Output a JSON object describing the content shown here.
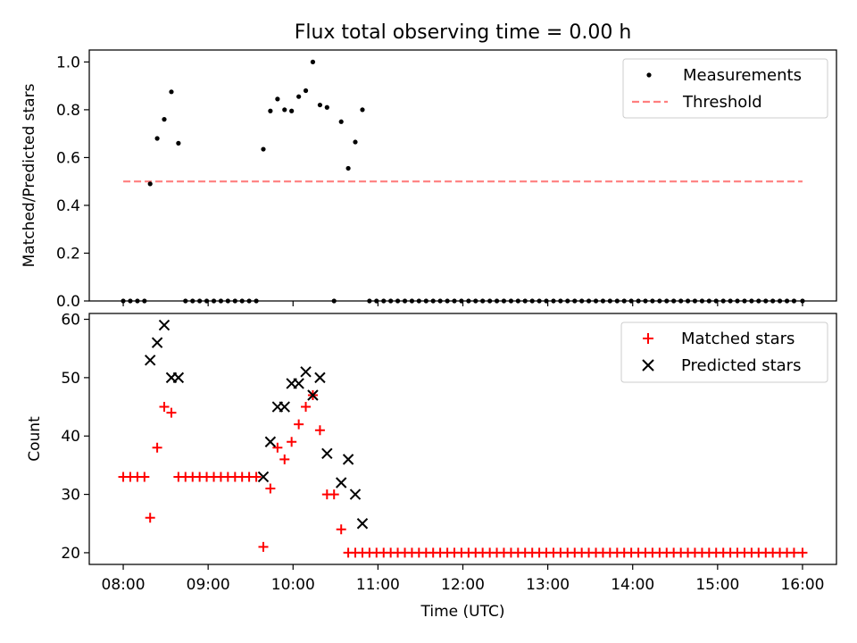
{
  "chart_data": [
    {
      "type": "scatter",
      "title": "Flux total observing time = 0.00 h",
      "ylabel": "Matched/Predicted stars",
      "ylim": [
        0.0,
        1.05
      ],
      "xlim": [
        7.6,
        16.4
      ],
      "yticks": [
        0.0,
        0.2,
        0.4,
        0.6,
        0.8,
        1.0
      ],
      "ytick_labels": [
        "0.0",
        "0.2",
        "0.4",
        "0.6",
        "0.8",
        "1.0"
      ],
      "legend_location": "top-right",
      "series": [
        {
          "name": "Measurements",
          "marker": "dot",
          "color": "#000000",
          "points": [
            [
              8.0,
              0.0
            ],
            [
              8.083,
              0.0
            ],
            [
              8.167,
              0.0
            ],
            [
              8.25,
              0.0
            ],
            [
              8.317,
              0.49
            ],
            [
              8.4,
              0.68
            ],
            [
              8.483,
              0.76
            ],
            [
              8.567,
              0.875
            ],
            [
              8.65,
              0.66
            ],
            [
              8.733,
              0.0
            ],
            [
              8.817,
              0.0
            ],
            [
              8.9,
              0.0
            ],
            [
              8.983,
              0.0
            ],
            [
              9.067,
              0.0
            ],
            [
              9.15,
              0.0
            ],
            [
              9.233,
              0.0
            ],
            [
              9.317,
              0.0
            ],
            [
              9.4,
              0.0
            ],
            [
              9.483,
              0.0
            ],
            [
              9.567,
              0.0
            ],
            [
              9.65,
              0.635
            ],
            [
              9.733,
              0.795
            ],
            [
              9.817,
              0.845
            ],
            [
              9.9,
              0.8
            ],
            [
              9.983,
              0.795
            ],
            [
              10.067,
              0.855
            ],
            [
              10.15,
              0.88
            ],
            [
              10.233,
              1.0
            ],
            [
              10.317,
              0.82
            ],
            [
              10.4,
              0.81
            ],
            [
              10.483,
              0.0
            ],
            [
              10.567,
              0.75
            ],
            [
              10.65,
              0.555
            ],
            [
              10.733,
              0.665
            ],
            [
              10.817,
              0.8
            ],
            [
              10.9,
              0.0
            ],
            [
              10.983,
              0.0
            ],
            [
              11.067,
              0.0
            ],
            [
              11.15,
              0.0
            ],
            [
              11.233,
              0.0
            ],
            [
              11.317,
              0.0
            ],
            [
              11.4,
              0.0
            ],
            [
              11.483,
              0.0
            ],
            [
              11.567,
              0.0
            ],
            [
              11.65,
              0.0
            ],
            [
              11.733,
              0.0
            ],
            [
              11.817,
              0.0
            ],
            [
              11.9,
              0.0
            ],
            [
              11.983,
              0.0
            ],
            [
              12.067,
              0.0
            ],
            [
              12.15,
              0.0
            ],
            [
              12.233,
              0.0
            ],
            [
              12.317,
              0.0
            ],
            [
              12.4,
              0.0
            ],
            [
              12.483,
              0.0
            ],
            [
              12.567,
              0.0
            ],
            [
              12.65,
              0.0
            ],
            [
              12.733,
              0.0
            ],
            [
              12.817,
              0.0
            ],
            [
              12.9,
              0.0
            ],
            [
              12.983,
              0.0
            ],
            [
              13.067,
              0.0
            ],
            [
              13.15,
              0.0
            ],
            [
              13.233,
              0.0
            ],
            [
              13.317,
              0.0
            ],
            [
              13.4,
              0.0
            ],
            [
              13.483,
              0.0
            ],
            [
              13.567,
              0.0
            ],
            [
              13.65,
              0.0
            ],
            [
              13.733,
              0.0
            ],
            [
              13.817,
              0.0
            ],
            [
              13.9,
              0.0
            ],
            [
              13.983,
              0.0
            ],
            [
              14.067,
              0.0
            ],
            [
              14.15,
              0.0
            ],
            [
              14.233,
              0.0
            ],
            [
              14.317,
              0.0
            ],
            [
              14.4,
              0.0
            ],
            [
              14.483,
              0.0
            ],
            [
              14.567,
              0.0
            ],
            [
              14.65,
              0.0
            ],
            [
              14.733,
              0.0
            ],
            [
              14.817,
              0.0
            ],
            [
              14.9,
              0.0
            ],
            [
              14.983,
              0.0
            ],
            [
              15.067,
              0.0
            ],
            [
              15.15,
              0.0
            ],
            [
              15.233,
              0.0
            ],
            [
              15.317,
              0.0
            ],
            [
              15.4,
              0.0
            ],
            [
              15.483,
              0.0
            ],
            [
              15.567,
              0.0
            ],
            [
              15.65,
              0.0
            ],
            [
              15.733,
              0.0
            ],
            [
              15.817,
              0.0
            ],
            [
              15.9,
              0.0
            ],
            [
              16.0,
              0.0
            ]
          ]
        },
        {
          "name": "Threshold",
          "marker": "dashed-line",
          "color": "#ff7f7f",
          "points": [
            [
              8.0,
              0.5
            ],
            [
              16.0,
              0.5
            ]
          ]
        }
      ]
    },
    {
      "type": "scatter",
      "xlabel": "Time (UTC)",
      "ylabel": "Count",
      "ylim": [
        18,
        61
      ],
      "xlim": [
        7.6,
        16.4
      ],
      "yticks": [
        20,
        30,
        40,
        50,
        60
      ],
      "ytick_labels": [
        "20",
        "30",
        "40",
        "50",
        "60"
      ],
      "xticks": [
        8,
        9,
        10,
        11,
        12,
        13,
        14,
        15,
        16
      ],
      "xtick_labels": [
        "08:00",
        "09:00",
        "10:00",
        "11:00",
        "12:00",
        "13:00",
        "14:00",
        "15:00",
        "16:00"
      ],
      "legend_location": "top-right",
      "series": [
        {
          "name": "Matched stars",
          "marker": "plus",
          "color": "#ff0000",
          "points": [
            [
              8.0,
              33
            ],
            [
              8.083,
              33
            ],
            [
              8.167,
              33
            ],
            [
              8.25,
              33
            ],
            [
              8.317,
              26
            ],
            [
              8.4,
              38
            ],
            [
              8.483,
              45
            ],
            [
              8.567,
              44
            ],
            [
              8.65,
              33
            ],
            [
              8.733,
              33
            ],
            [
              8.817,
              33
            ],
            [
              8.9,
              33
            ],
            [
              8.983,
              33
            ],
            [
              9.067,
              33
            ],
            [
              9.15,
              33
            ],
            [
              9.233,
              33
            ],
            [
              9.317,
              33
            ],
            [
              9.4,
              33
            ],
            [
              9.483,
              33
            ],
            [
              9.567,
              33
            ],
            [
              9.65,
              21
            ],
            [
              9.733,
              31
            ],
            [
              9.817,
              38
            ],
            [
              9.9,
              36
            ],
            [
              9.983,
              39
            ],
            [
              10.067,
              42
            ],
            [
              10.15,
              45
            ],
            [
              10.233,
              47
            ],
            [
              10.317,
              41
            ],
            [
              10.4,
              30
            ],
            [
              10.483,
              30
            ],
            [
              10.567,
              24
            ],
            [
              10.65,
              20
            ],
            [
              10.733,
              20
            ],
            [
              10.817,
              20
            ],
            [
              10.9,
              20
            ],
            [
              10.983,
              20
            ],
            [
              11.067,
              20
            ],
            [
              11.15,
              20
            ],
            [
              11.233,
              20
            ],
            [
              11.317,
              20
            ],
            [
              11.4,
              20
            ],
            [
              11.483,
              20
            ],
            [
              11.567,
              20
            ],
            [
              11.65,
              20
            ],
            [
              11.733,
              20
            ],
            [
              11.817,
              20
            ],
            [
              11.9,
              20
            ],
            [
              11.983,
              20
            ],
            [
              12.067,
              20
            ],
            [
              12.15,
              20
            ],
            [
              12.233,
              20
            ],
            [
              12.317,
              20
            ],
            [
              12.4,
              20
            ],
            [
              12.483,
              20
            ],
            [
              12.567,
              20
            ],
            [
              12.65,
              20
            ],
            [
              12.733,
              20
            ],
            [
              12.817,
              20
            ],
            [
              12.9,
              20
            ],
            [
              12.983,
              20
            ],
            [
              13.067,
              20
            ],
            [
              13.15,
              20
            ],
            [
              13.233,
              20
            ],
            [
              13.317,
              20
            ],
            [
              13.4,
              20
            ],
            [
              13.483,
              20
            ],
            [
              13.567,
              20
            ],
            [
              13.65,
              20
            ],
            [
              13.733,
              20
            ],
            [
              13.817,
              20
            ],
            [
              13.9,
              20
            ],
            [
              13.983,
              20
            ],
            [
              14.067,
              20
            ],
            [
              14.15,
              20
            ],
            [
              14.233,
              20
            ],
            [
              14.317,
              20
            ],
            [
              14.4,
              20
            ],
            [
              14.483,
              20
            ],
            [
              14.567,
              20
            ],
            [
              14.65,
              20
            ],
            [
              14.733,
              20
            ],
            [
              14.817,
              20
            ],
            [
              14.9,
              20
            ],
            [
              14.983,
              20
            ],
            [
              15.067,
              20
            ],
            [
              15.15,
              20
            ],
            [
              15.233,
              20
            ],
            [
              15.317,
              20
            ],
            [
              15.4,
              20
            ],
            [
              15.483,
              20
            ],
            [
              15.567,
              20
            ],
            [
              15.65,
              20
            ],
            [
              15.733,
              20
            ],
            [
              15.817,
              20
            ],
            [
              15.9,
              20
            ],
            [
              16.0,
              20
            ]
          ]
        },
        {
          "name": "Predicted stars",
          "marker": "x",
          "color": "#000000",
          "points": [
            [
              8.317,
              53
            ],
            [
              8.4,
              56
            ],
            [
              8.483,
              59
            ],
            [
              8.567,
              50
            ],
            [
              8.65,
              50
            ],
            [
              9.65,
              33
            ],
            [
              9.733,
              39
            ],
            [
              9.817,
              45
            ],
            [
              9.9,
              45
            ],
            [
              9.983,
              49
            ],
            [
              10.067,
              49
            ],
            [
              10.15,
              51
            ],
            [
              10.233,
              47
            ],
            [
              10.317,
              50
            ],
            [
              10.4,
              37
            ],
            [
              10.567,
              32
            ],
            [
              10.65,
              36
            ],
            [
              10.733,
              30
            ],
            [
              10.817,
              25
            ]
          ]
        }
      ]
    }
  ]
}
